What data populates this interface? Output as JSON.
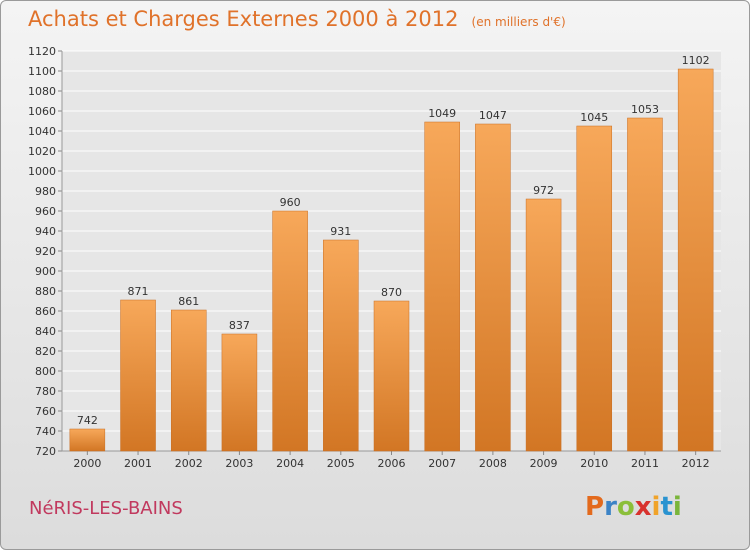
{
  "header": {
    "title": "Achats et Charges Externes 2000 à 2012",
    "units": "(en milliers d'€)"
  },
  "footer": {
    "commune": "NéRIS-LES-BAINS",
    "logo": "Proxiti"
  },
  "colors": {
    "title": "#e0722a",
    "bar_top": "#f7a85a",
    "bar_bottom": "#d27624",
    "commune": "#c1395e"
  },
  "chart_data": {
    "type": "bar",
    "title": "Achats et Charges Externes 2000 à 2012",
    "subtitle": "(en milliers d'€)",
    "categories": [
      "2000",
      "2001",
      "2002",
      "2003",
      "2004",
      "2005",
      "2006",
      "2007",
      "2008",
      "2009",
      "2010",
      "2011",
      "2012"
    ],
    "values": [
      742,
      871,
      861,
      837,
      960,
      931,
      870,
      1049,
      1047,
      972,
      1045,
      1053,
      1102
    ],
    "ylim": [
      720,
      1120
    ],
    "yticks": [
      720,
      740,
      760,
      780,
      800,
      820,
      840,
      860,
      880,
      900,
      920,
      940,
      960,
      980,
      1000,
      1020,
      1040,
      1060,
      1080,
      1100,
      1120
    ],
    "grid": true,
    "xlabel": "",
    "ylabel": ""
  }
}
